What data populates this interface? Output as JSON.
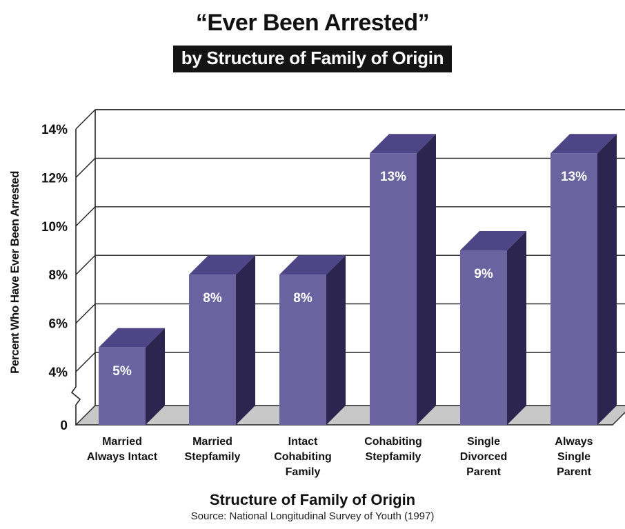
{
  "chart_data": {
    "type": "bar",
    "title": "“Ever Been Arrested”",
    "subtitle": "by Structure of Family of Origin",
    "ylabel": "Percent Who Have Ever Been Arrested",
    "xlabel": "Structure of Family of Origin",
    "source": "Source: National Longitudinal Survey of Youth (1997)",
    "categories": [
      [
        "Married",
        "Always Intact"
      ],
      [
        "Married",
        "Stepfamily"
      ],
      [
        "Intact",
        "Cohabiting",
        "Family"
      ],
      [
        "Cohabiting",
        "Stepfamily"
      ],
      [
        "Single",
        "Divorced",
        "Parent"
      ],
      [
        "Always",
        "Single",
        "Parent"
      ]
    ],
    "values": [
      5,
      8,
      8,
      13,
      9,
      13
    ],
    "data_labels": [
      "5%",
      "8%",
      "8%",
      "13%",
      "9%",
      "13%"
    ],
    "yticks": [
      0,
      4,
      6,
      8,
      10,
      12,
      14
    ],
    "ytick_labels": [
      "0",
      "4%",
      "6%",
      "8%",
      "10%",
      "12%",
      "14%"
    ],
    "axis_break": true,
    "grid": true,
    "colors": {
      "bar_front": "#6b62a0",
      "bar_top": "#4d4585",
      "bar_side": "#2b2550",
      "floor": "#c8c8c8"
    }
  }
}
